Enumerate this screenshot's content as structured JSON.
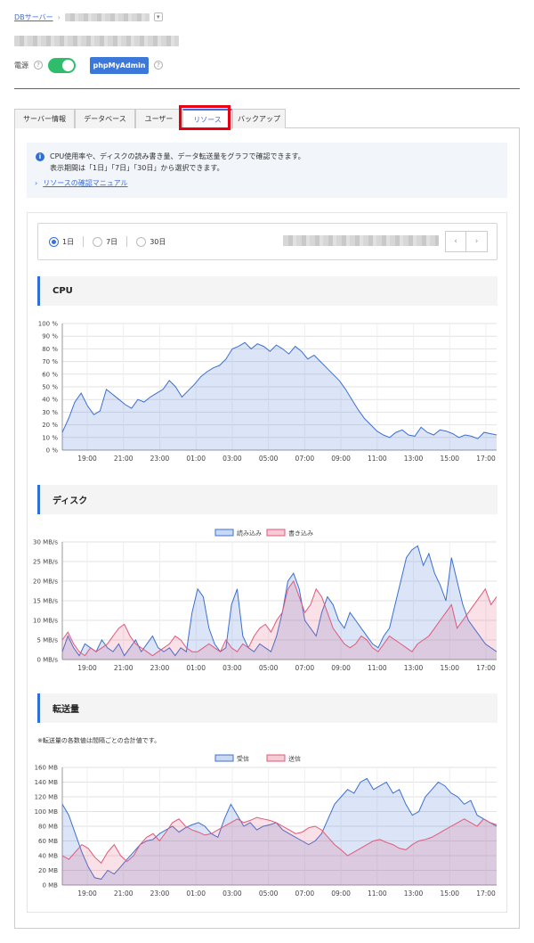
{
  "breadcrumb": {
    "parent": "DBサーバー",
    "separator": "›",
    "toggle_icon": "chevron-down-icon"
  },
  "power": {
    "label": "電源",
    "state": "on",
    "help": "?"
  },
  "phpmyadmin_label": "phpMyAdmin",
  "tabs": [
    {
      "label": "サーバー情報"
    },
    {
      "label": "データベース"
    },
    {
      "label": "ユーザー"
    },
    {
      "label": "リソース",
      "active": true
    },
    {
      "label": "バックアップ"
    }
  ],
  "info": {
    "icon": "i",
    "line1": "CPU使用率や、ディスクの読み書き量、データ転送量をグラフで確認できます。",
    "line2": "表示期間は「1日」「7日」「30日」から選択できます。",
    "manual_link": "リソースの確認マニュアル",
    "manual_prefix": "›"
  },
  "period": {
    "options": [
      "1日",
      "7日",
      "30日"
    ],
    "selected": "1日",
    "prev": "‹",
    "next": "›"
  },
  "sections": {
    "cpu": "CPU",
    "disk": "ディスク",
    "transfer": "転送量"
  },
  "transfer_note": "※転送量の各数値は間隔ごとの合計値です。",
  "colors": {
    "accent": "#3a6fd8",
    "power_on": "#2ebd6b",
    "highlight": "#e60012",
    "series_blue": "#3c6fd0",
    "series_red": "#e0597a"
  },
  "chart_data": [
    {
      "id": "cpu",
      "type": "area",
      "x_labels": [
        "19:00",
        "21:00",
        "23:00",
        "01:00",
        "03:00",
        "05:00",
        "07:00",
        "09:00",
        "11:00",
        "13:00",
        "15:00",
        "17:00"
      ],
      "ylim": [
        0,
        100
      ],
      "y_ticks": [
        0,
        10,
        20,
        30,
        40,
        50,
        60,
        70,
        80,
        90,
        100
      ],
      "y_unit": " %",
      "series": [
        {
          "values": [
            14,
            25,
            38,
            45,
            35,
            28,
            31,
            48,
            44,
            40,
            36,
            33,
            40,
            38,
            42,
            45,
            48,
            55,
            50,
            42,
            47,
            52,
            58,
            62,
            65,
            67,
            72,
            80,
            82,
            85,
            80,
            84,
            82,
            78,
            83,
            80,
            76,
            82,
            78,
            72,
            75,
            70,
            65,
            60,
            55,
            48,
            40,
            32,
            25,
            20,
            15,
            12,
            10,
            14,
            16,
            12,
            11,
            18,
            14,
            12,
            16,
            15,
            13,
            10,
            12,
            11,
            9,
            14,
            13,
            12
          ]
        }
      ]
    },
    {
      "id": "disk",
      "type": "area",
      "x_labels": [
        "19:00",
        "21:00",
        "23:00",
        "01:00",
        "03:00",
        "05:00",
        "07:00",
        "09:00",
        "11:00",
        "13:00",
        "15:00",
        "17:00"
      ],
      "ylim": [
        0,
        30
      ],
      "y_ticks": [
        0,
        5,
        10,
        15,
        20,
        25,
        30
      ],
      "y_unit": " MB/s",
      "legend": {
        "position": "top-center"
      },
      "series": [
        {
          "name": "読み込み",
          "values": [
            2,
            6,
            3,
            1,
            4,
            3,
            2,
            5,
            3,
            2,
            4,
            1,
            3,
            5,
            2,
            4,
            6,
            3,
            2,
            3,
            1,
            3,
            2,
            12,
            18,
            16,
            8,
            4,
            2,
            3,
            14,
            18,
            6,
            3,
            2,
            4,
            3,
            2,
            6,
            12,
            20,
            22,
            18,
            10,
            8,
            6,
            12,
            16,
            14,
            10,
            8,
            12,
            10,
            8,
            6,
            4,
            3,
            6,
            8,
            14,
            20,
            26,
            28,
            29,
            24,
            27,
            22,
            19,
            15,
            26,
            20,
            14,
            10,
            8,
            6,
            4,
            3,
            2
          ]
        },
        {
          "name": "書き込み",
          "values": [
            5,
            7,
            4,
            2,
            1,
            3,
            2,
            3,
            4,
            6,
            8,
            9,
            6,
            4,
            3,
            2,
            1,
            2,
            3,
            4,
            6,
            5,
            3,
            2,
            2,
            3,
            4,
            3,
            2,
            5,
            3,
            2,
            4,
            3,
            6,
            8,
            9,
            7,
            10,
            12,
            18,
            20,
            16,
            12,
            14,
            18,
            16,
            12,
            8,
            6,
            4,
            3,
            4,
            6,
            5,
            3,
            2,
            4,
            6,
            5,
            4,
            3,
            2,
            4,
            5,
            6,
            8,
            10,
            12,
            14,
            8,
            10,
            12,
            14,
            16,
            18,
            14,
            16
          ]
        }
      ]
    },
    {
      "id": "transfer",
      "type": "area",
      "x_labels": [
        "19:00",
        "21:00",
        "23:00",
        "01:00",
        "03:00",
        "05:00",
        "07:00",
        "09:00",
        "11:00",
        "13:00",
        "15:00",
        "17:00"
      ],
      "ylim": [
        0,
        160
      ],
      "y_ticks": [
        0,
        20,
        40,
        60,
        80,
        100,
        120,
        140,
        160
      ],
      "y_unit": " MB",
      "legend": {
        "position": "top-center"
      },
      "series": [
        {
          "name": "受信",
          "values": [
            110,
            95,
            70,
            45,
            25,
            10,
            8,
            20,
            15,
            25,
            35,
            45,
            55,
            60,
            62,
            70,
            75,
            80,
            72,
            78,
            82,
            85,
            80,
            70,
            65,
            90,
            110,
            95,
            80,
            85,
            75,
            80,
            82,
            85,
            75,
            70,
            65,
            60,
            55,
            60,
            70,
            90,
            110,
            120,
            130,
            125,
            140,
            145,
            130,
            135,
            140,
            125,
            130,
            110,
            95,
            100,
            120,
            130,
            140,
            135,
            125,
            120,
            110,
            115,
            95,
            90,
            85,
            80
          ]
        },
        {
          "name": "送信",
          "values": [
            40,
            35,
            45,
            55,
            50,
            38,
            30,
            45,
            55,
            40,
            32,
            40,
            55,
            65,
            70,
            60,
            72,
            85,
            90,
            80,
            75,
            72,
            68,
            70,
            75,
            80,
            85,
            90,
            85,
            88,
            92,
            90,
            88,
            85,
            80,
            75,
            70,
            72,
            78,
            80,
            75,
            65,
            55,
            48,
            40,
            45,
            50,
            55,
            60,
            62,
            58,
            55,
            50,
            48,
            55,
            60,
            62,
            65,
            70,
            75,
            80,
            85,
            90,
            85,
            80,
            90,
            85,
            82
          ]
        }
      ]
    }
  ]
}
